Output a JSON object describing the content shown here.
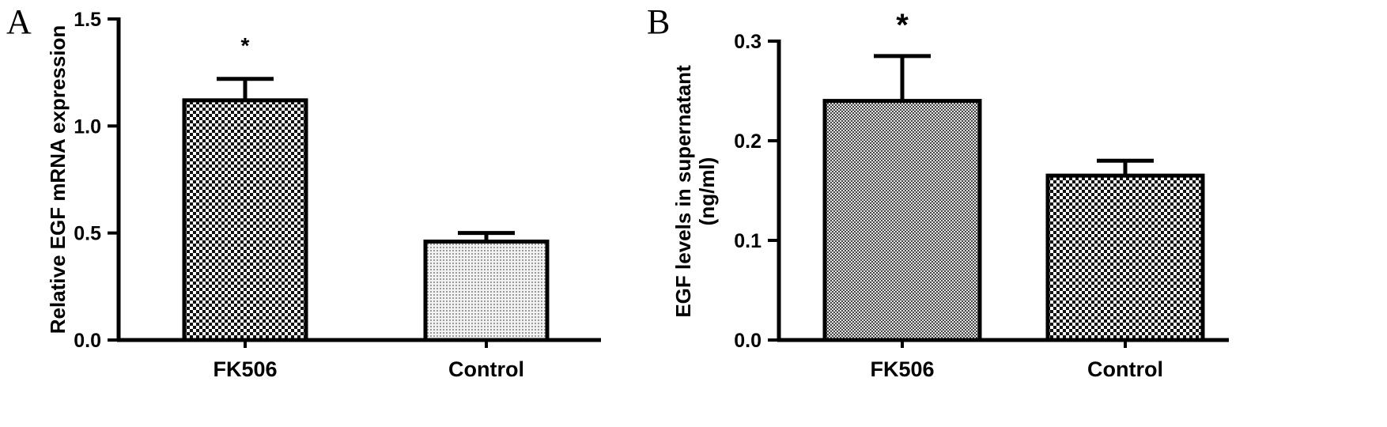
{
  "chart_data": [
    {
      "type": "bar",
      "panel_label": "A",
      "categories": [
        "FK506",
        "Control"
      ],
      "values": [
        1.12,
        0.46
      ],
      "errors": [
        0.1,
        0.04
      ],
      "ylabel": "Relative EGF mRNA expression",
      "ylabel_lines": [
        "Relative EGF mRNA expression"
      ],
      "ylim": [
        0,
        1.5
      ],
      "yticks": [
        0.0,
        0.5,
        1.0,
        1.5
      ],
      "ytick_labels": [
        "0.0",
        "0.5",
        "1.0",
        "1.5"
      ],
      "annotations": [
        {
          "category": "FK506",
          "text": "*"
        }
      ],
      "grid": false
    },
    {
      "type": "bar",
      "panel_label": "B",
      "categories": [
        "FK506",
        "Control"
      ],
      "values": [
        0.24,
        0.165
      ],
      "errors": [
        0.045,
        0.015
      ],
      "ylabel": "EGF levels in supernatant (ng/ml)",
      "ylabel_lines": [
        "EGF levels in supernatant",
        "(ng/ml)"
      ],
      "ylim": [
        0,
        0.3
      ],
      "yticks": [
        0.0,
        0.1,
        0.2,
        0.3
      ],
      "ytick_labels": [
        "0.0",
        "0.1",
        "0.2",
        "0.3"
      ],
      "annotations": [
        {
          "category": "FK506",
          "text": "*"
        }
      ],
      "grid": false
    }
  ],
  "colors": {
    "axis": "#000000",
    "bar_outline": "#000000"
  }
}
